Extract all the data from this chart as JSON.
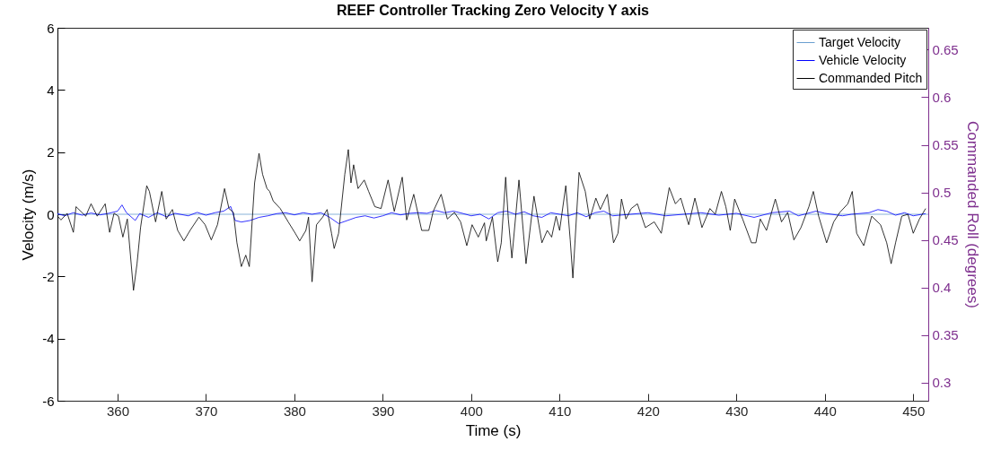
{
  "chart_data": {
    "type": "line",
    "title": "REEF Controller Tracking Zero Velocity Y axis",
    "xlabel": "Time (s)",
    "ylabel": "Velocity (m/s)",
    "y2label": "Commanded Roll (degrees)",
    "xlim": [
      353.2,
      451.7
    ],
    "xticks": [
      360,
      370,
      380,
      390,
      400,
      410,
      420,
      430,
      440,
      450
    ],
    "ylim": [
      -6,
      6
    ],
    "yticks": [
      -6,
      -4,
      -2,
      0,
      2,
      4,
      6
    ],
    "y2lim": [
      0.281,
      0.673
    ],
    "y2ticks": [
      0.3,
      0.35,
      0.4,
      0.45,
      0.5,
      0.55,
      0.6,
      0.65
    ],
    "grid": false,
    "legend": "top right",
    "line_style": "solid",
    "marker": "none",
    "series": [
      {
        "name": "Target Velocity",
        "color": "#6a9fcf",
        "x": [
          353.2,
          451.7
        ],
        "values": [
          0,
          0
        ]
      },
      {
        "name": "Vehicle Velocity",
        "color": "#0000ff",
        "x": [
          353.2,
          354,
          355,
          356,
          357,
          358,
          359,
          360,
          360.5,
          361,
          362,
          362.5,
          363.5,
          364.5,
          365.5,
          366.5,
          368,
          369,
          370,
          371,
          372,
          372.8,
          373.3,
          374,
          375,
          376,
          377,
          378,
          379,
          380,
          381,
          382,
          383,
          384,
          385,
          386,
          387,
          388,
          389,
          390,
          391,
          392,
          393,
          394,
          395,
          396,
          397,
          398,
          399,
          400,
          401,
          402,
          403,
          404,
          405,
          406,
          407,
          408,
          409,
          410,
          411,
          412,
          413,
          414,
          415,
          416,
          418,
          420,
          422,
          424,
          426,
          428,
          430,
          432,
          434,
          436,
          437,
          439,
          440,
          442,
          443,
          445,
          446,
          447,
          448,
          449,
          450,
          451.4
        ],
        "values": [
          0.02,
          -0.05,
          0.05,
          -0.03,
          0.04,
          -0.02,
          0.03,
          0.1,
          0.3,
          0.05,
          -0.2,
          0.02,
          -0.1,
          0.05,
          -0.08,
          0.03,
          -0.05,
          0.06,
          -0.03,
          0.05,
          0.1,
          0.25,
          -0.2,
          -0.25,
          -0.2,
          -0.1,
          -0.05,
          0.02,
          0.05,
          -0.02,
          0.05,
          0,
          0.05,
          -0.1,
          -0.3,
          -0.2,
          -0.1,
          -0.05,
          -0.12,
          -0.05,
          0.05,
          -0.02,
          0.03,
          0.05,
          0.03,
          0.12,
          0.05,
          0.1,
          0.03,
          -0.05,
          0,
          -0.15,
          0.05,
          0.1,
          0,
          0.08,
          -0.05,
          -0.1,
          0.05,
          0,
          -0.05,
          0.05,
          -0.08,
          0.05,
          0.1,
          -0.05,
          0,
          0.05,
          -0.05,
          0,
          0.05,
          -0.03,
          0.03,
          -0.1,
          0.05,
          0.1,
          -0.05,
          0.1,
          0.03,
          -0.05,
          0,
          0.05,
          0.15,
          0.1,
          -0.03,
          0.05,
          -0.05,
          0.02
        ]
      },
      {
        "name": "Commanded Pitch",
        "color": "#000000",
        "axis": "y2",
        "x": [
          353.2,
          353.6,
          354.3,
          355.0,
          355.3,
          356.4,
          357.0,
          357.7,
          358.6,
          359.1,
          359.6,
          360.1,
          360.6,
          361.1,
          361.8,
          362.2,
          362.6,
          363.3,
          363.6,
          364.3,
          365.0,
          365.5,
          366.2,
          366.8,
          367.5,
          368.2,
          369.2,
          369.9,
          370.6,
          371.3,
          372.1,
          372.6,
          373.1,
          373.5,
          374.0,
          374.5,
          374.9,
          375.5,
          376.0,
          376.4,
          376.9,
          377.2,
          377.6,
          378.4,
          379.3,
          380.1,
          380.6,
          381.3,
          381.6,
          382.0,
          382.5,
          383.2,
          383.7,
          384.2,
          384.5,
          385.0,
          385.7,
          386.1,
          386.4,
          386.7,
          387.2,
          387.9,
          388.4,
          389.1,
          389.8,
          390.6,
          391.3,
          392.2,
          392.7,
          393.5,
          394.4,
          395.2,
          395.7,
          396.6,
          397.3,
          398.1,
          398.8,
          399.5,
          400.1,
          400.8,
          401.5,
          401.7,
          402.4,
          403.0,
          403.4,
          403.9,
          404.2,
          404.6,
          405.4,
          406.2,
          407.1,
          408.0,
          408.6,
          409.1,
          409.6,
          410.0,
          410.7,
          411.2,
          411.5,
          412.2,
          412.9,
          413.4,
          414.1,
          414.6,
          415.4,
          416.1,
          416.6,
          417.0,
          417.5,
          418.1,
          418.8,
          419.7,
          420.7,
          421.5,
          422.4,
          423.1,
          423.7,
          424.6,
          425.3,
          426.1,
          427.0,
          427.6,
          428.3,
          428.8,
          429.3,
          429.8,
          430.7,
          431.7,
          432.2,
          432.7,
          433.4,
          434.4,
          435.1,
          435.8,
          436.5,
          437.3,
          438.2,
          438.7,
          439.3,
          440.2,
          441.0,
          441.7,
          442.6,
          443.1,
          443.6,
          444.4,
          445.3,
          446.3,
          447.0,
          447.5,
          448.0,
          448.7,
          449.4,
          450.0,
          450.7,
          451.4
        ],
        "values": [
          0.475,
          0.471,
          0.478,
          0.458,
          0.485,
          0.475,
          0.488,
          0.475,
          0.488,
          0.458,
          0.478,
          0.475,
          0.453,
          0.472,
          0.397,
          0.425,
          0.463,
          0.507,
          0.501,
          0.469,
          0.501,
          0.472,
          0.482,
          0.46,
          0.449,
          0.46,
          0.474,
          0.466,
          0.45,
          0.466,
          0.504,
          0.483,
          0.479,
          0.447,
          0.422,
          0.434,
          0.422,
          0.51,
          0.541,
          0.519,
          0.504,
          0.501,
          0.491,
          0.483,
          0.469,
          0.457,
          0.449,
          0.46,
          0.474,
          0.406,
          0.466,
          0.474,
          0.482,
          0.457,
          0.441,
          0.457,
          0.519,
          0.545,
          0.51,
          0.529,
          0.504,
          0.513,
          0.501,
          0.485,
          0.483,
          0.513,
          0.48,
          0.516,
          0.471,
          0.498,
          0.46,
          0.46,
          0.48,
          0.498,
          0.472,
          0.479,
          0.469,
          0.444,
          0.466,
          0.453,
          0.468,
          0.449,
          0.474,
          0.427,
          0.447,
          0.516,
          0.472,
          0.431,
          0.513,
          0.425,
          0.496,
          0.447,
          0.46,
          0.453,
          0.475,
          0.46,
          0.507,
          0.45,
          0.41,
          0.521,
          0.501,
          0.472,
          0.494,
          0.482,
          0.498,
          0.447,
          0.457,
          0.493,
          0.472,
          0.483,
          0.488,
          0.463,
          0.469,
          0.457,
          0.505,
          0.488,
          0.494,
          0.466,
          0.494,
          0.463,
          0.483,
          0.477,
          0.501,
          0.485,
          0.46,
          0.493,
          0.472,
          0.447,
          0.447,
          0.472,
          0.46,
          0.493,
          0.469,
          0.479,
          0.45,
          0.463,
          0.485,
          0.501,
          0.475,
          0.447,
          0.469,
          0.479,
          0.488,
          0.501,
          0.457,
          0.444,
          0.475,
          0.466,
          0.447,
          0.425,
          0.447,
          0.475,
          0.477,
          0.457,
          0.472,
          0.483
        ]
      }
    ]
  }
}
